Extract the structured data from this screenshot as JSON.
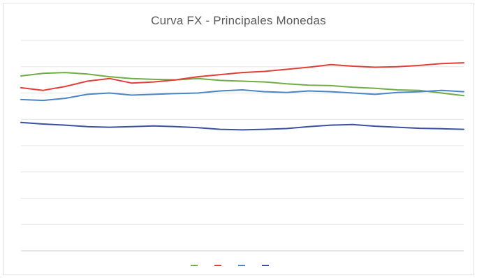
{
  "chart_data": {
    "type": "line",
    "title": "Curva FX - Principales Monedas",
    "xlabel": "",
    "ylabel": "",
    "ylim": [
      0,
      8
    ],
    "yticks": [
      0,
      1,
      2,
      3,
      4,
      5,
      6,
      7,
      8
    ],
    "ytick_labels": [
      "",
      "",
      "",
      "",
      "",
      "",
      "",
      "",
      ""
    ],
    "xticks": [
      "",
      "",
      "",
      "",
      "",
      "",
      "",
      "",
      "",
      "",
      "",
      ""
    ],
    "grid": "horizontal",
    "legend_position": "bottom",
    "series": [
      {
        "name": "",
        "color": "#70ad47",
        "values": [
          6.65,
          6.75,
          6.78,
          6.72,
          6.62,
          6.55,
          6.52,
          6.5,
          6.55,
          6.48,
          6.45,
          6.42,
          6.35,
          6.3,
          6.28,
          6.22,
          6.18,
          6.12,
          6.1,
          6.0,
          5.9
        ]
      },
      {
        "name": "",
        "color": "#e0403a",
        "values": [
          6.2,
          6.1,
          6.25,
          6.45,
          6.55,
          6.38,
          6.42,
          6.5,
          6.62,
          6.7,
          6.78,
          6.82,
          6.9,
          6.98,
          7.08,
          7.02,
          6.98,
          7.0,
          7.05,
          7.12,
          7.15
        ]
      },
      {
        "name": "",
        "color": "#4a86c8",
        "values": [
          5.75,
          5.72,
          5.8,
          5.95,
          6.0,
          5.92,
          5.95,
          5.98,
          6.0,
          6.08,
          6.12,
          6.05,
          6.02,
          6.08,
          6.05,
          6.0,
          5.95,
          6.02,
          6.05,
          6.1,
          6.05
        ]
      },
      {
        "name": "",
        "color": "#3b50a0",
        "values": [
          4.88,
          4.82,
          4.78,
          4.72,
          4.7,
          4.72,
          4.75,
          4.72,
          4.68,
          4.62,
          4.6,
          4.62,
          4.65,
          4.72,
          4.78,
          4.8,
          4.74,
          4.7,
          4.66,
          4.64,
          4.62
        ]
      }
    ]
  }
}
